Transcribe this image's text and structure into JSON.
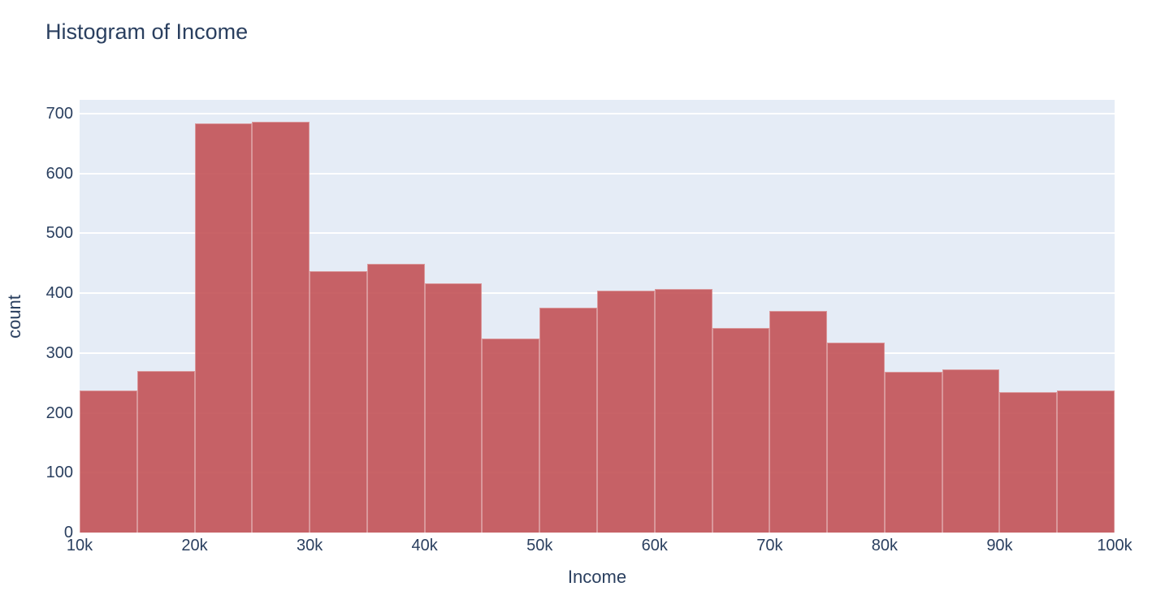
{
  "title": "Histogram of Income",
  "colors": {
    "text": "#2A3F5F",
    "page_bg": "#FFFFFF",
    "plot_bg": "#E5ECF6",
    "grid": "#FFFFFF",
    "bar_hex": "#C5626A",
    "bar_fill": "rgba(194,82,87,0.9)",
    "bar_edge": "rgba(255,255,255,0.35)"
  },
  "chart_data": {
    "type": "bar",
    "subtype": "histogram",
    "title": "Histogram of Income",
    "xlabel": "Income",
    "ylabel": "count",
    "orientation": "vertical",
    "grid": true,
    "legend": false,
    "bin_width": 5000,
    "bin_edges": [
      10000,
      15000,
      20000,
      25000,
      30000,
      35000,
      40000,
      45000,
      50000,
      55000,
      60000,
      65000,
      70000,
      75000,
      80000,
      85000,
      90000,
      95000,
      100000
    ],
    "counts": [
      237,
      270,
      684,
      687,
      437,
      449,
      417,
      324,
      376,
      404,
      407,
      342,
      371,
      318,
      269,
      272,
      235,
      238
    ],
    "x_ticks": [
      "10k",
      "20k",
      "30k",
      "40k",
      "50k",
      "60k",
      "70k",
      "80k",
      "90k",
      "100k"
    ],
    "x_tick_values": [
      10000,
      20000,
      30000,
      40000,
      50000,
      60000,
      70000,
      80000,
      90000,
      100000
    ],
    "y_ticks": [
      0,
      100,
      200,
      300,
      400,
      500,
      600,
      700
    ],
    "xlim": [
      10000,
      100000
    ],
    "ylim": [
      0,
      723
    ]
  }
}
